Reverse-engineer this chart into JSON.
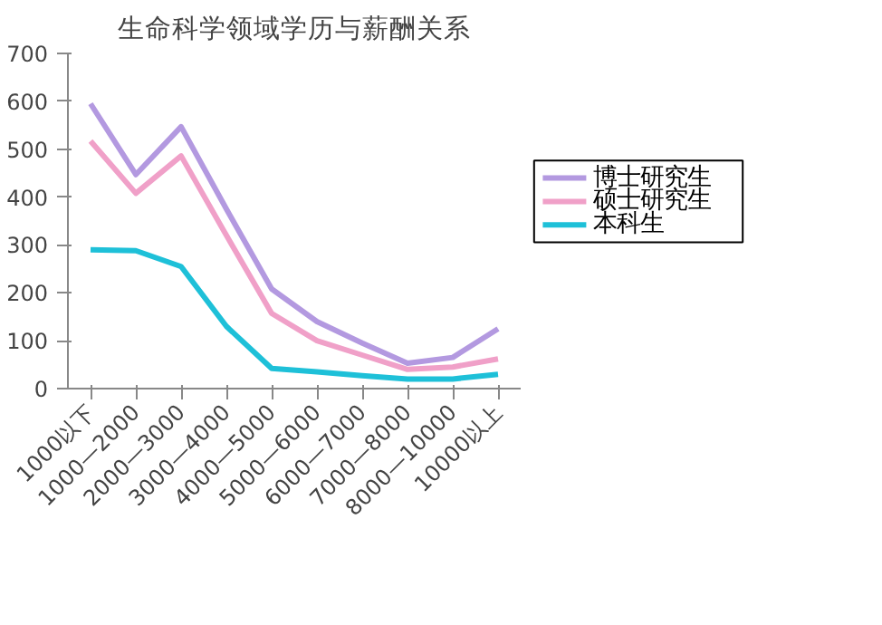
{
  "chart_data": {
    "type": "line",
    "title": "生命科学领域学历与薪酬关系",
    "categories": [
      "1000以下",
      "1000—2000",
      "2000—3000",
      "3000—4000",
      "4000—5000",
      "5000—6000",
      "6000—7000",
      "7000—8000",
      "8000—10000",
      "10000以上"
    ],
    "series": [
      {
        "name": "博士研究生",
        "color": "#b399e0",
        "values": [
          595,
          447,
          547,
          375,
          208,
          140,
          95,
          53,
          65,
          125
        ]
      },
      {
        "name": "硕士研究生",
        "color": "#f0a0c8",
        "values": [
          517,
          408,
          486,
          320,
          157,
          100,
          70,
          40,
          45,
          62
        ]
      },
      {
        "name": "本科生",
        "color": "#1ec0d8",
        "values": [
          290,
          288,
          255,
          130,
          42,
          35,
          27,
          20,
          20,
          30
        ]
      }
    ],
    "ylim": [
      0,
      700
    ],
    "yticks": [
      0,
      100,
      200,
      300,
      400,
      500,
      600,
      700
    ],
    "grid": false,
    "legend": "right",
    "marker": "none",
    "line_style": "solid"
  }
}
